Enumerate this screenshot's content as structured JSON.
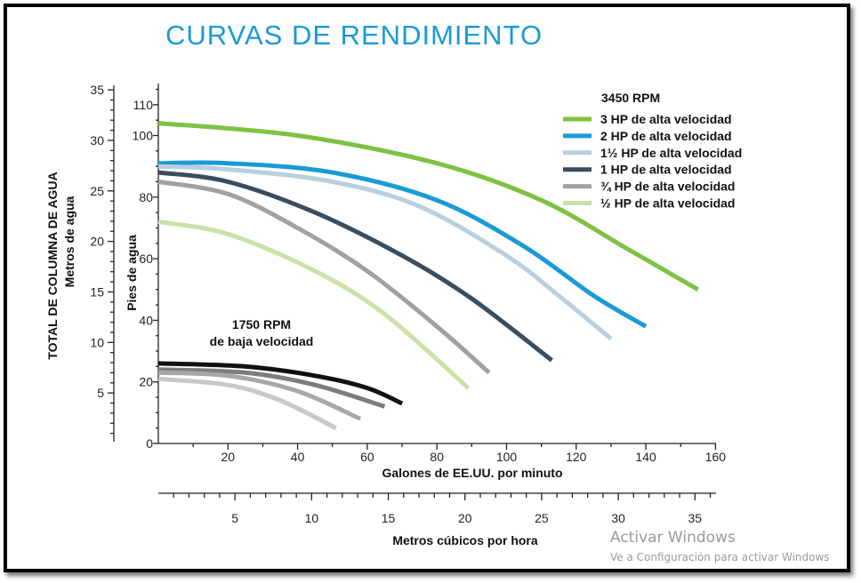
{
  "title": "CURVAS DE RENDIMIENTO",
  "watermark": {
    "line1": "Activar Windows",
    "line2": "Ve a Configuración para activar Windows"
  },
  "chart_data": {
    "type": "line",
    "title": "CURVAS DE RENDIMIENTO",
    "xlabel": "Galones de EE.UU. por minuto",
    "xlabel_secondary": "Metros cúbicos por hora",
    "ylabel": "Pies de agua",
    "ylabel_secondary": [
      "TOTAL DE COLUMNA DE AGUA",
      "Metros de agua"
    ],
    "xlim": [
      0,
      160
    ],
    "ylim": [
      0,
      110
    ],
    "x_ticks": [
      "20",
      "40",
      "60",
      "80",
      "100",
      "120",
      "140",
      "160"
    ],
    "y_ticks": [
      "0",
      "20",
      "40",
      "60",
      "80",
      "100",
      "110"
    ],
    "x2_ticks": [
      "5",
      "10",
      "15",
      "20",
      "25",
      "30",
      "35"
    ],
    "y2_ticks": [
      "5",
      "10",
      "15",
      "20",
      "25",
      "30",
      "35"
    ],
    "grid": false,
    "legend_title": "3450 RPM",
    "legend_position": "top-right",
    "low_speed_label": [
      "1750 RPM",
      "de baja velocidad"
    ],
    "series": [
      {
        "name": "3 HP de alta velocidad",
        "color": "#7dc242",
        "speed": "3450",
        "points": [
          [
            0,
            104
          ],
          [
            40,
            100
          ],
          [
            80,
            91
          ],
          [
            110,
            79
          ],
          [
            135,
            63
          ],
          [
            155,
            50
          ]
        ]
      },
      {
        "name": "2 HP de alta velocidad",
        "color": "#1a9ad7",
        "speed": "3450",
        "points": [
          [
            0,
            91
          ],
          [
            20,
            91
          ],
          [
            50,
            88
          ],
          [
            80,
            79
          ],
          [
            105,
            64
          ],
          [
            125,
            48
          ],
          [
            140,
            38
          ]
        ]
      },
      {
        "name": "1½ HP de alta velocidad",
        "color": "#b9cfdd",
        "speed": "3450",
        "points": [
          [
            0,
            90
          ],
          [
            20,
            89
          ],
          [
            50,
            85
          ],
          [
            75,
            77
          ],
          [
            100,
            61
          ],
          [
            115,
            48
          ],
          [
            130,
            34
          ]
        ]
      },
      {
        "name": "1 HP de alta velocidad",
        "color": "#3a4d5e",
        "speed": "3450",
        "points": [
          [
            0,
            88
          ],
          [
            20,
            85
          ],
          [
            45,
            75
          ],
          [
            70,
            61
          ],
          [
            90,
            47
          ],
          [
            113,
            27
          ]
        ]
      },
      {
        "name": "¾ HP de alta velocidad",
        "color": "#a3a09d",
        "speed": "3450",
        "points": [
          [
            0,
            85
          ],
          [
            20,
            81
          ],
          [
            40,
            70
          ],
          [
            60,
            56
          ],
          [
            80,
            38
          ],
          [
            95,
            23
          ]
        ]
      },
      {
        "name": "½ HP de alta velocidad",
        "color": "#c9e2a6",
        "speed": "3450",
        "points": [
          [
            0,
            72
          ],
          [
            20,
            68
          ],
          [
            45,
            56
          ],
          [
            65,
            42
          ],
          [
            89,
            18
          ]
        ]
      },
      {
        "name": "",
        "color": "#111111",
        "speed": "1750",
        "points": [
          [
            0,
            26
          ],
          [
            25,
            25
          ],
          [
            45,
            22
          ],
          [
            60,
            18
          ],
          [
            70,
            13
          ]
        ]
      },
      {
        "name": "",
        "color": "#7d7d7d",
        "speed": "1750",
        "points": [
          [
            0,
            24
          ],
          [
            25,
            23
          ],
          [
            45,
            19
          ],
          [
            65,
            12
          ]
        ]
      },
      {
        "name": "",
        "color": "#a7a7a7",
        "speed": "1750",
        "points": [
          [
            0,
            23
          ],
          [
            20,
            22
          ],
          [
            40,
            17
          ],
          [
            58,
            8
          ]
        ]
      },
      {
        "name": "",
        "color": "#c8c8c8",
        "speed": "1750",
        "points": [
          [
            0,
            21
          ],
          [
            20,
            19
          ],
          [
            35,
            14
          ],
          [
            51,
            5
          ]
        ]
      }
    ]
  }
}
